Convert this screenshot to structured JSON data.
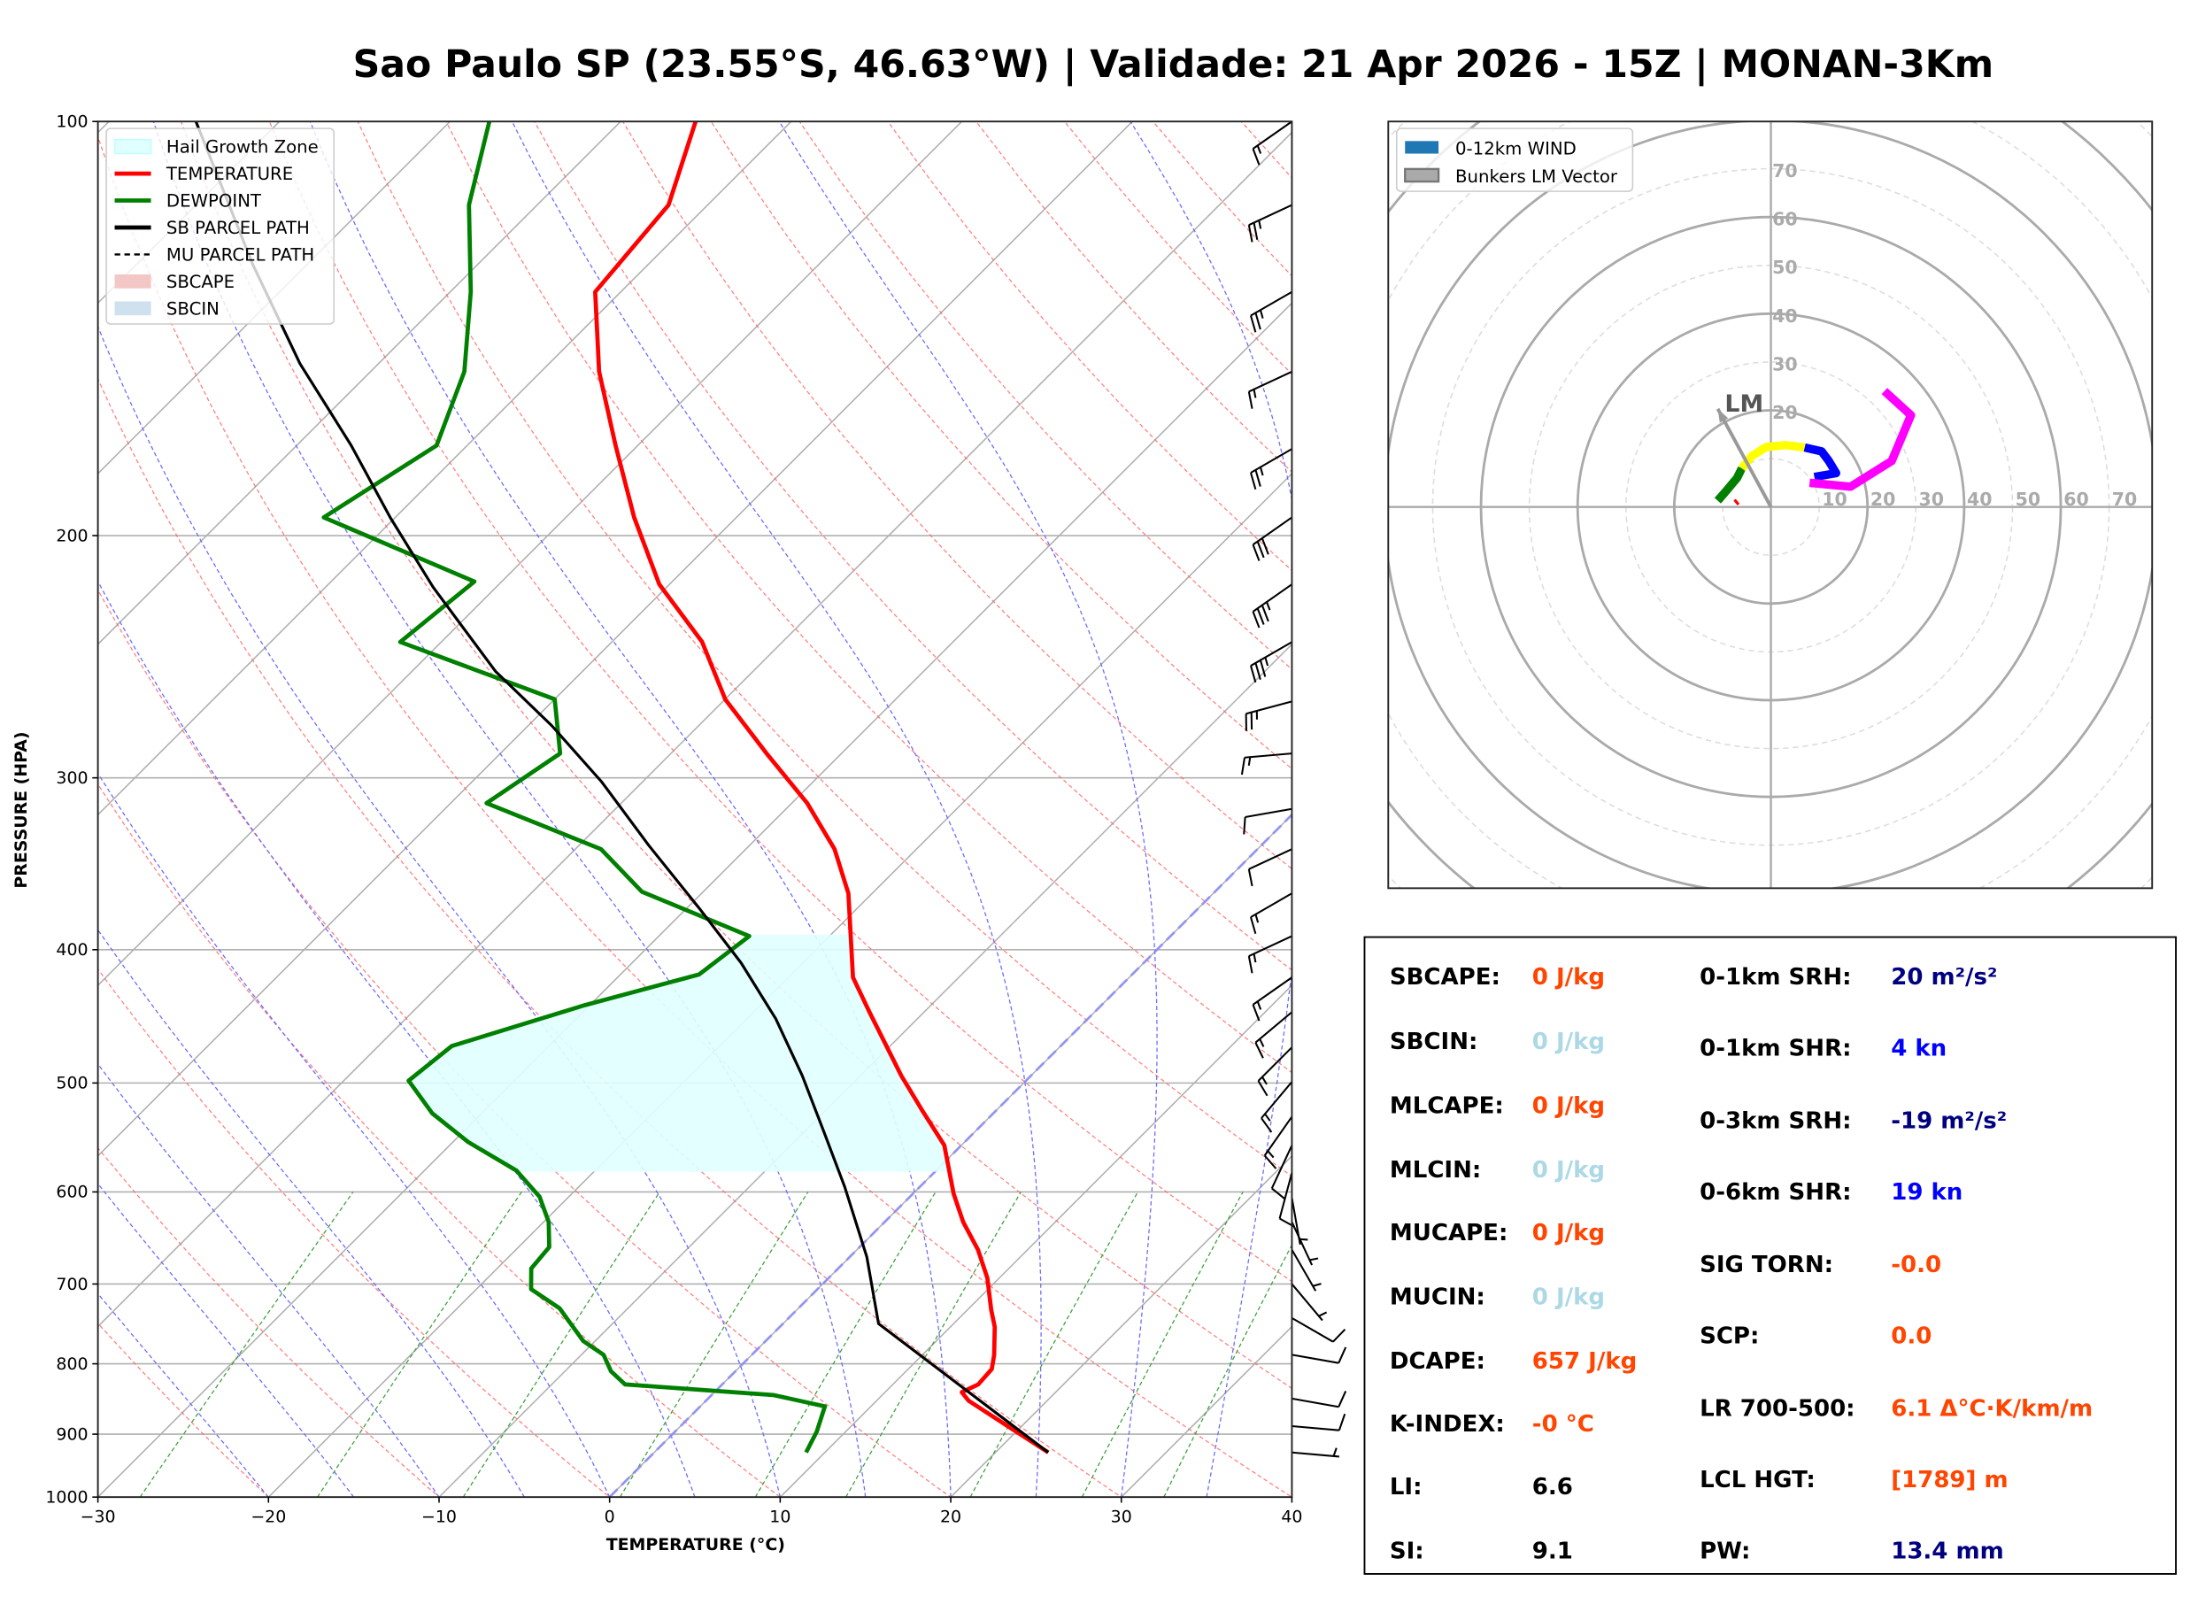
{
  "title": "Sao Paulo SP (23.55°S, 46.63°W) | Validade: 21 Apr 2026 - 15Z | MONAN-3Km",
  "chart_data": [
    {
      "type": "line",
      "subtype": "skew-t log-p",
      "xlabel": "TEMPERATURE (°C)",
      "ylabel": "PRESSURE (HPA)",
      "xlim": [
        -30,
        40
      ],
      "ylim": [
        1000,
        100
      ],
      "yscale": "log",
      "x_ticks": [
        "−30",
        "−20",
        "−10",
        "0",
        "10",
        "20",
        "30",
        "40"
      ],
      "x_tick_values": [
        -30,
        -20,
        -10,
        0,
        10,
        20,
        30,
        40
      ],
      "y_ticks": [
        "100",
        "200",
        "300",
        "400",
        "500",
        "600",
        "700",
        "800",
        "900",
        "1000"
      ],
      "y_tick_values": [
        100,
        200,
        300,
        400,
        500,
        600,
        700,
        800,
        900,
        1000
      ],
      "grid": true,
      "legend_position": "top-left",
      "legend": [
        {
          "label": "Hail Growth Zone",
          "color": "#e0ffff",
          "kind": "patch"
        },
        {
          "label": "TEMPERATURE",
          "color": "#ff0000",
          "kind": "line"
        },
        {
          "label": "DEWPOINT",
          "color": "#008000",
          "kind": "line"
        },
        {
          "label": "SB PARCEL PATH",
          "color": "#000000",
          "kind": "line"
        },
        {
          "label": "MU PARCEL PATH",
          "color": "#000000",
          "kind": "dashed"
        },
        {
          "label": "SBCAPE",
          "color": "#f4c7c7",
          "kind": "patch"
        },
        {
          "label": "SBCIN",
          "color": "#cfe0ee",
          "kind": "patch"
        }
      ],
      "series": [
        {
          "name": "TEMPERATURE",
          "color": "#ff0000",
          "pressure": [
            928,
            851,
            839,
            828,
            807,
            788,
            752,
            731,
            693,
            661,
            631,
            602,
            555,
            523,
            494,
            444,
            419,
            364,
            338,
            313,
            288,
            263,
            239,
            217,
            194,
            172,
            152,
            133,
            115,
            100
          ],
          "temperature": [
            23.1,
            15.4,
            14.5,
            15.0,
            14.9,
            14.2,
            12.6,
            11.4,
            9.3,
            7.1,
            4.6,
            2.4,
            -1.0,
            -4.4,
            -7.6,
            -13.2,
            -16.2,
            -21.4,
            -24.8,
            -29.1,
            -34.4,
            -40.0,
            -44.7,
            -50.6,
            -56.0,
            -61.3,
            -66.6,
            -71.5,
            -72.3,
            -75.6
          ]
        },
        {
          "name": "DEWPOINT",
          "color": "#008000",
          "pressure": [
            928,
            896,
            859,
            843,
            828,
            810,
            788,
            770,
            729,
            706,
            682,
            658,
            631,
            605,
            579,
            552,
            526,
            498,
            470,
            439,
            417,
            391,
            363,
            338,
            313,
            288,
            263,
            239,
            216,
            194,
            172,
            152,
            133,
            115,
            100
          ],
          "temperature": [
            8.9,
            8.3,
            7.3,
            3.6,
            -5.7,
            -7.3,
            -8.7,
            -10.7,
            -14.0,
            -16.8,
            -18.0,
            -18.2,
            -19.7,
            -21.7,
            -24.6,
            -29.1,
            -32.9,
            -36.2,
            -35.7,
            -30.3,
            -25.4,
            -24.7,
            -33.6,
            -38.5,
            -47.9,
            -46.5,
            -50.0,
            -62.4,
            -61.6,
            -74.2,
            -71.8,
            -74.5,
            -78.8,
            -84.0,
            -87.7
          ]
        },
        {
          "name": "SB PARCEL PATH",
          "color": "#000000",
          "pressure": [
            928,
            748,
            669,
            595,
            542,
            494,
            449,
            409,
            373,
            336,
            302,
            275,
            251,
            218,
            194,
            172,
            150,
            127,
            100
          ],
          "temperature": [
            23.1,
            5.6,
            1.0,
            -4.4,
            -8.9,
            -13.4,
            -18.3,
            -23.6,
            -29.3,
            -35.9,
            -42.4,
            -48.6,
            -55.1,
            -63.7,
            -70.3,
            -76.8,
            -84.6,
            -93.2,
            -104.9
          ]
        }
      ],
      "hail_growth_zone": {
        "pressure_bottom": 580,
        "pressure_top": 390
      },
      "wind_barbs": {
        "pressure": [
          100,
          115,
          133,
          152,
          173,
          194,
          217,
          239,
          264,
          288,
          316,
          338,
          364,
          391,
          419,
          444,
          471,
          499,
          529,
          555,
          581,
          606,
          631,
          661,
          700,
          741,
          788,
          848,
          888,
          928
        ],
        "direction_deg": [
          235,
          245,
          240,
          245,
          240,
          235,
          235,
          240,
          255,
          265,
          260,
          245,
          240,
          245,
          235,
          230,
          225,
          220,
          215,
          205,
          195,
          170,
          155,
          150,
          140,
          120,
          100,
          100,
          95,
          95
        ],
        "speed_kn": [
          15,
          25,
          25,
          15,
          25,
          30,
          35,
          35,
          25,
          15,
          10,
          10,
          15,
          15,
          15,
          15,
          15,
          15,
          15,
          10,
          10,
          5,
          5,
          5,
          5,
          10,
          10,
          10,
          10,
          5
        ]
      }
    },
    {
      "type": "line",
      "subtype": "hodograph",
      "units": "kn",
      "range_kn": 80,
      "ring_labels": [
        "10",
        "20",
        "30",
        "40",
        "50",
        "60",
        "70"
      ],
      "ring_values": [
        10,
        20,
        30,
        40,
        50,
        60,
        70
      ],
      "vertical_labels": [
        "20",
        "30",
        "40",
        "50",
        "60",
        "70"
      ],
      "vertical_values": [
        20,
        30,
        40,
        50,
        60,
        70
      ],
      "legend_position": "top-left",
      "legend": [
        {
          "label": "0-12km WIND",
          "color": "#1f77b4"
        },
        {
          "label": "Bunkers LM Vector",
          "color": "#aaaaaa"
        }
      ],
      "segments": [
        {
          "color": "#ff0000",
          "u": [
            -6.7,
            -7.5
          ],
          "v": [
            0.5,
            1.5
          ]
        },
        {
          "color": "#008000",
          "u": [
            -11,
            -9.5,
            -7,
            -6
          ],
          "v": [
            1.3,
            3,
            6,
            8
          ]
        },
        {
          "color": "#ffff00",
          "u": [
            -6,
            -4,
            -1,
            3,
            7
          ],
          "v": [
            8,
            10.5,
            12.4,
            12.8,
            12.3
          ]
        },
        {
          "color": "#0000ff",
          "u": [
            7,
            10.5,
            12,
            13.5,
            9
          ],
          "v": [
            12.3,
            11.5,
            9.5,
            7,
            6.2
          ]
        },
        {
          "color": "#ff00ff",
          "u": [
            8,
            16.5,
            25,
            29,
            23.5
          ],
          "v": [
            5,
            4.2,
            9.5,
            19,
            24
          ]
        }
      ],
      "bunkers_lm": {
        "label": "LM",
        "u": -11,
        "v": 20.3
      }
    }
  ],
  "stats": {
    "left": [
      {
        "label": "SBCAPE:",
        "value": "0 J/kg",
        "color": "#ff4500"
      },
      {
        "label": "SBCIN:",
        "value": "0 J/kg",
        "color": "#add8e6"
      },
      {
        "label": "MLCAPE:",
        "value": "0 J/kg",
        "color": "#ff4500"
      },
      {
        "label": "MLCIN:",
        "value": "0 J/kg",
        "color": "#add8e6"
      },
      {
        "label": "MUCAPE:",
        "value": "0 J/kg",
        "color": "#ff4500"
      },
      {
        "label": "MUCIN:",
        "value": "0 J/kg",
        "color": "#add8e6"
      },
      {
        "label": "DCAPE:",
        "value": "657 J/kg",
        "color": "#ff4500"
      },
      {
        "label": "K-INDEX:",
        "value": "-0 °C",
        "color": "#ff4500"
      },
      {
        "label": "LI:",
        "value": "6.6",
        "color": "#000000"
      },
      {
        "label": "SI:",
        "value": "9.1",
        "color": "#000000"
      }
    ],
    "right": [
      {
        "label": "0-1km SRH:",
        "value": "20 m²/s²",
        "color": "#000080"
      },
      {
        "label": "0-1km SHR:",
        "value": "4 kn",
        "color": "#0000ff"
      },
      {
        "label": "0-3km SRH:",
        "value": "-19 m²/s²",
        "color": "#000080"
      },
      {
        "label": "0-6km SHR:",
        "value": "19 kn",
        "color": "#0000ff"
      },
      {
        "label": "SIG TORN:",
        "value": "-0.0",
        "color": "#ff4500"
      },
      {
        "label": "SCP:",
        "value": "0.0",
        "color": "#ff4500"
      },
      {
        "label": "LR 700-500:",
        "value": "6.1 Δ°C·K/km/m",
        "color": "#ff4500"
      },
      {
        "label": "LCL HGT:",
        "value": "[1789] m",
        "color": "#ff4500"
      },
      {
        "label": "PW:",
        "value": "13.4 mm",
        "color": "#000080"
      }
    ]
  }
}
